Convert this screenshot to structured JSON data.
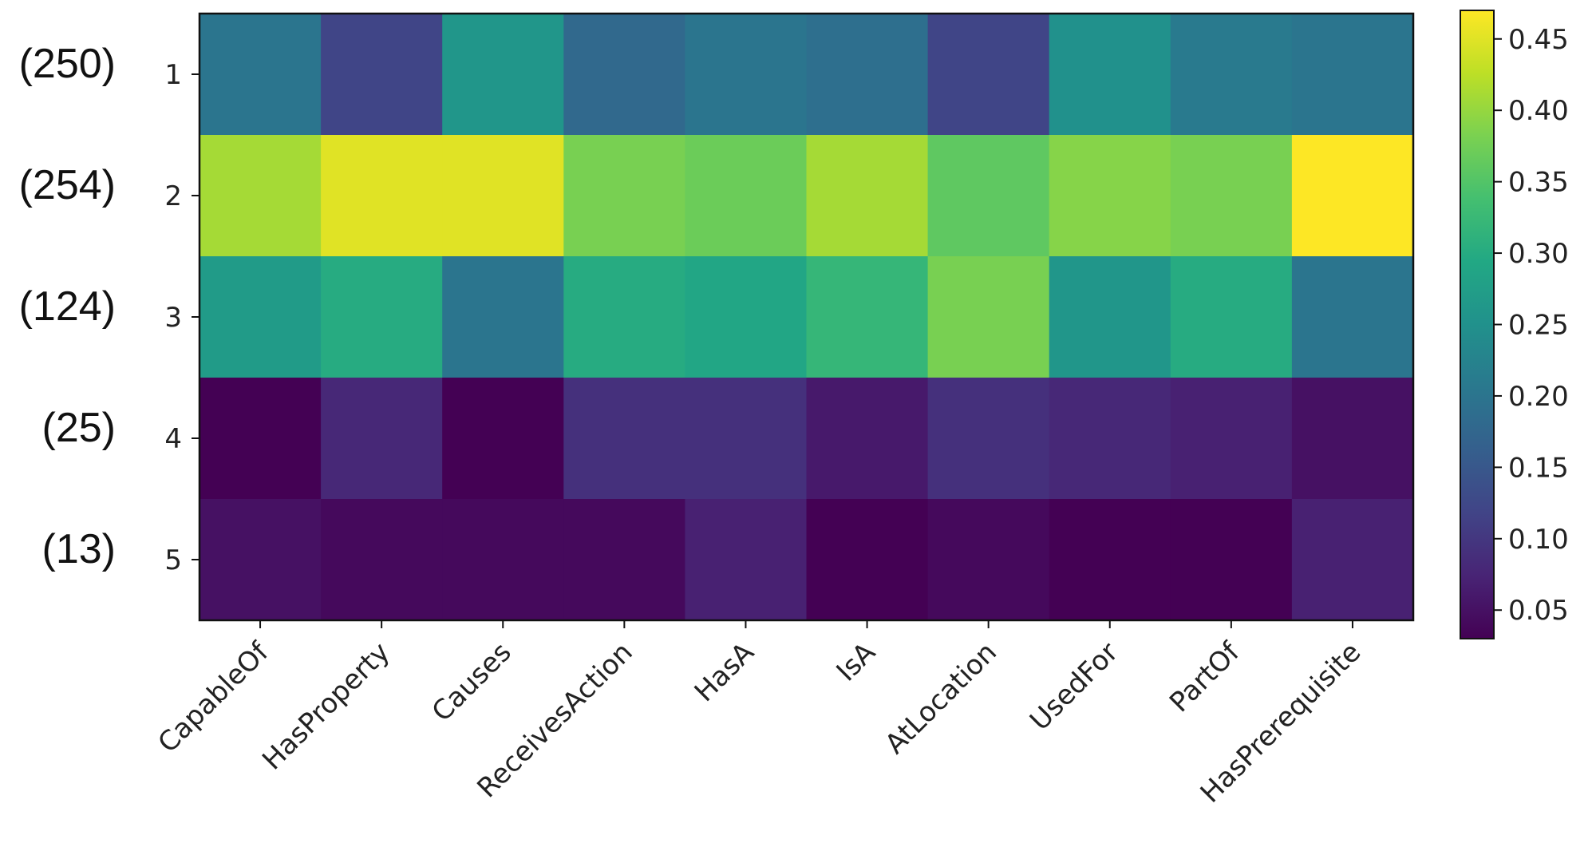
{
  "chart_data": {
    "type": "heatmap",
    "title_fragment": "",
    "columns": [
      "CapableOf",
      "HasProperty",
      "Causes",
      "ReceivesAction",
      "HasA",
      "IsA",
      "AtLocation",
      "UsedFor",
      "PartOf",
      "HasPrerequisite"
    ],
    "rows": [
      "1",
      "2",
      "3",
      "4",
      "5"
    ],
    "row_counts": [
      "(250)",
      "(254)",
      "(124)",
      "(25)",
      "(13)"
    ],
    "values": [
      [
        0.2,
        0.12,
        0.26,
        0.18,
        0.2,
        0.19,
        0.12,
        0.25,
        0.21,
        0.2
      ],
      [
        0.41,
        0.45,
        0.45,
        0.38,
        0.37,
        0.41,
        0.36,
        0.39,
        0.38,
        0.47
      ],
      [
        0.27,
        0.3,
        0.2,
        0.3,
        0.29,
        0.32,
        0.38,
        0.26,
        0.3,
        0.2
      ],
      [
        0.03,
        0.08,
        0.03,
        0.09,
        0.09,
        0.06,
        0.09,
        0.08,
        0.07,
        0.05
      ],
      [
        0.05,
        0.04,
        0.04,
        0.04,
        0.07,
        0.02,
        0.04,
        0.02,
        0.02,
        0.07
      ]
    ],
    "colorscale": "viridis",
    "vmin": 0.03,
    "vmax": 0.47,
    "colorbar_ticks": [
      "0.05",
      "0.10",
      "0.15",
      "0.20",
      "0.25",
      "0.30",
      "0.35",
      "0.40",
      "0.45"
    ],
    "colorbar_tick_values": [
      0.05,
      0.1,
      0.15,
      0.2,
      0.25,
      0.3,
      0.35,
      0.4,
      0.45
    ]
  }
}
